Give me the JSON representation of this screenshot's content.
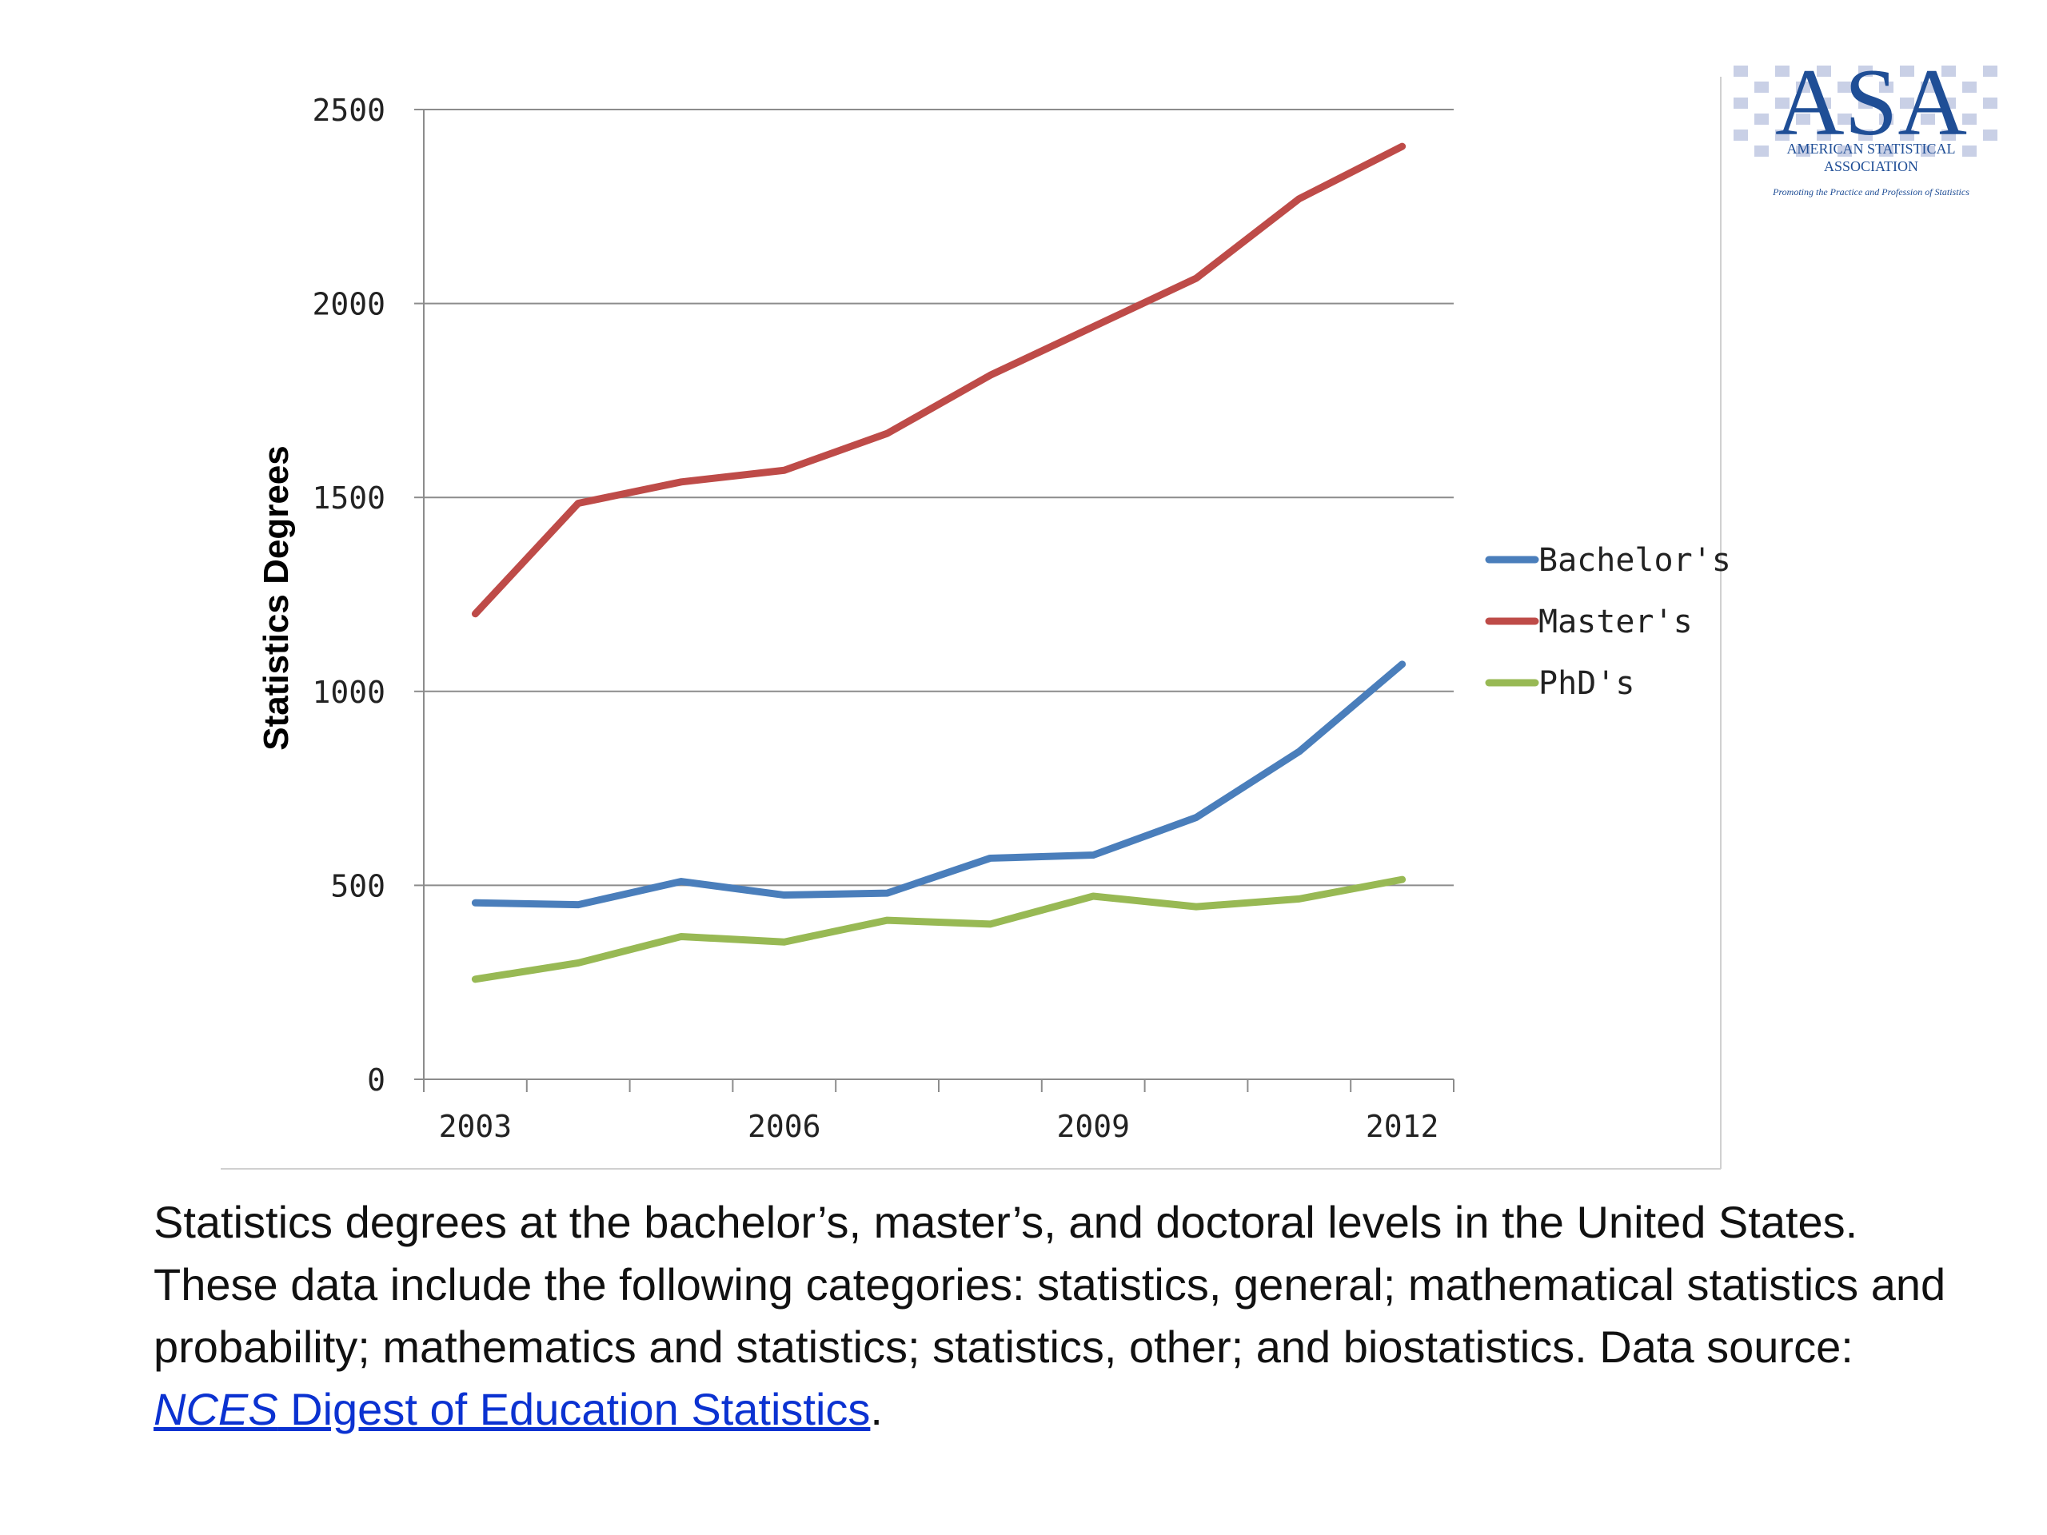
{
  "colors": {
    "bachelors": "#4a7ebb",
    "masters": "#be4b48",
    "phds": "#98b954",
    "grid": "#8c8c8c",
    "link": "#0b32d1",
    "logo": "#1f4e96"
  },
  "logo": {
    "mark": "ASA",
    "line1": "AMERICAN STATISTICAL",
    "line2": "ASSOCIATION",
    "tagline": "Promoting the Practice and Profession of Statistics"
  },
  "chart_data": {
    "type": "line",
    "title": "",
    "xlabel": "",
    "ylabel": "Statistics Degrees",
    "x": [
      2003,
      2004,
      2005,
      2006,
      2007,
      2008,
      2009,
      2010,
      2011,
      2012
    ],
    "x_tick_labels": [
      "2003",
      "2006",
      "2009",
      "2012"
    ],
    "y_ticks": [
      0,
      500,
      1000,
      1500,
      2000,
      2500
    ],
    "ylim": [
      0,
      2500
    ],
    "grid": "horizontal",
    "legend_position": "right",
    "series": [
      {
        "name": "Bachelor's",
        "color_key": "bachelors",
        "values": [
          455,
          450,
          510,
          475,
          480,
          570,
          578,
          675,
          845,
          1070
        ]
      },
      {
        "name": "Master's",
        "color_key": "masters",
        "values": [
          1200,
          1485,
          1540,
          1570,
          1665,
          1815,
          1940,
          2065,
          2270,
          2405
        ]
      },
      {
        "name": "PhD's",
        "color_key": "phds",
        "values": [
          258,
          300,
          368,
          354,
          410,
          400,
          472,
          445,
          465,
          515
        ]
      }
    ]
  },
  "caption": {
    "text_before": "Statistics degrees at the bachelor’s, master’s, and doctoral levels in the United States. These data include the following categories: statistics, general; mathematical statistics and probability; mathematics and statistics; statistics, other; and biostatistics. Data source: ",
    "link_italic": "NCES",
    "link_rest": " Digest of Education Statistics",
    "text_after": "."
  }
}
